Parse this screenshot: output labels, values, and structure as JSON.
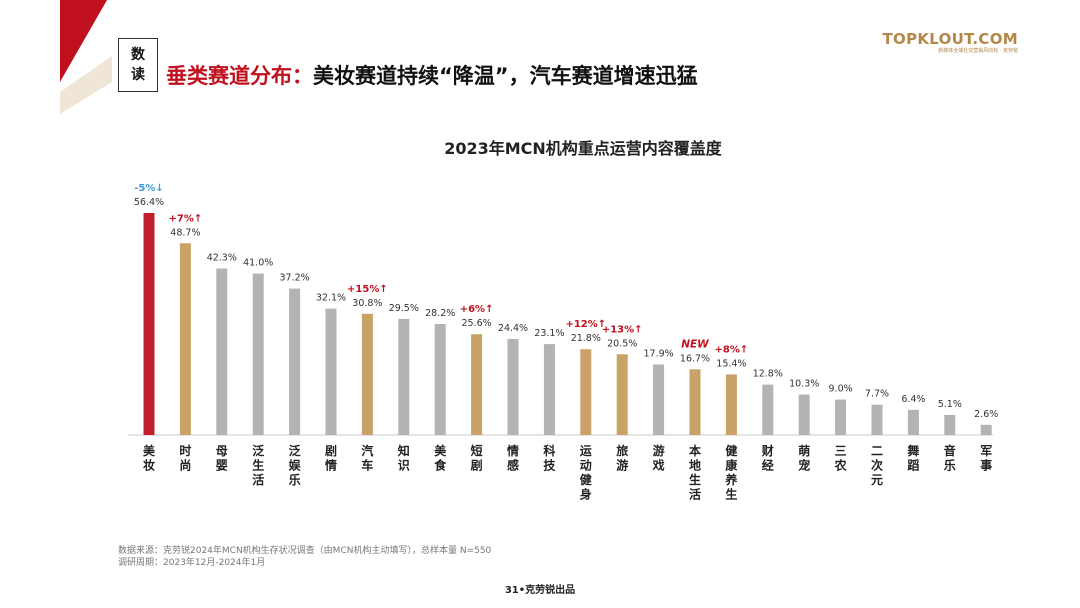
{
  "header": {
    "tag_line1": "数",
    "tag_line2": "读",
    "headline_prefix": "垂类赛道分布：",
    "headline_rest": "美妆赛道持续“降温”，汽车赛道增速迅猛"
  },
  "logo": {
    "mark": "TOPKLOUT.COM",
    "sub": "新媒体全域社交营销风向标 · 克劳锐"
  },
  "colors": {
    "highlight_red": "#c01f2b",
    "growth_gold": "#c8a266",
    "neutral_gray": "#b3b3b3",
    "up_text": "#c0101d",
    "down_text": "#3a9ad9",
    "brand_red": "#c0101d"
  },
  "chart_data": {
    "type": "bar",
    "title": "2023年MCN机构重点运营内容覆盖度",
    "categories": [
      "美妆",
      "时尚",
      "母婴",
      "泛生活",
      "泛娱乐",
      "剧情",
      "汽车",
      "知识",
      "美食",
      "短剧",
      "情感",
      "科技",
      "运动健身",
      "旅游",
      "游戏",
      "本地生活",
      "健康养生",
      "财经",
      "萌宠",
      "三农",
      "二次元",
      "舞蹈",
      "音乐",
      "军事"
    ],
    "values": [
      56.4,
      48.7,
      42.3,
      41.0,
      37.2,
      32.1,
      30.8,
      29.5,
      28.2,
      25.6,
      24.4,
      23.1,
      21.8,
      20.5,
      17.9,
      16.7,
      15.4,
      12.8,
      10.3,
      9.0,
      7.7,
      6.4,
      5.1,
      2.6
    ],
    "value_labels": [
      "56.4%",
      "48.7%",
      "42.3%",
      "41.0%",
      "37.2%",
      "32.1%",
      "30.8%",
      "29.5%",
      "28.2%",
      "25.6%",
      "24.4%",
      "23.1%",
      "21.8%",
      "20.5%",
      "17.9%",
      "16.7%",
      "15.4%",
      "12.8%",
      "10.3%",
      "9.0%",
      "7.7%",
      "6.4%",
      "5.1%",
      "2.6%"
    ],
    "bar_styles": [
      "highlight",
      "growth",
      "neutral",
      "neutral",
      "neutral",
      "neutral",
      "growth",
      "neutral",
      "neutral",
      "growth",
      "neutral",
      "neutral",
      "growth",
      "growth",
      "neutral",
      "growth",
      "growth",
      "neutral",
      "neutral",
      "neutral",
      "neutral",
      "neutral",
      "neutral",
      "neutral"
    ],
    "annotations": [
      {
        "category": "美妆",
        "text": "-5%↓",
        "direction": "down"
      },
      {
        "category": "时尚",
        "text": "+7%↑",
        "direction": "up"
      },
      {
        "category": "汽车",
        "text": "+15%↑",
        "direction": "up"
      },
      {
        "category": "短剧",
        "text": "+6%↑",
        "direction": "up"
      },
      {
        "category": "运动健身",
        "text": "+12%↑",
        "direction": "up"
      },
      {
        "category": "旅游",
        "text": "+13%↑",
        "direction": "up"
      },
      {
        "category": "本地生活",
        "text": "NEW",
        "direction": "new"
      },
      {
        "category": "健康养生",
        "text": "+8%↑",
        "direction": "up"
      }
    ],
    "ylim": [
      0,
      60
    ],
    "xlabel": "",
    "ylabel": "",
    "grid": false,
    "legend": "none"
  },
  "footer": {
    "source": "数据来源：克劳锐2024年MCN机构生存状况调查（由MCN机构主动填写），总样本量 N=550",
    "period": "调研周期：2023年12月-2024年1月",
    "page": "31•克劳锐出品"
  }
}
